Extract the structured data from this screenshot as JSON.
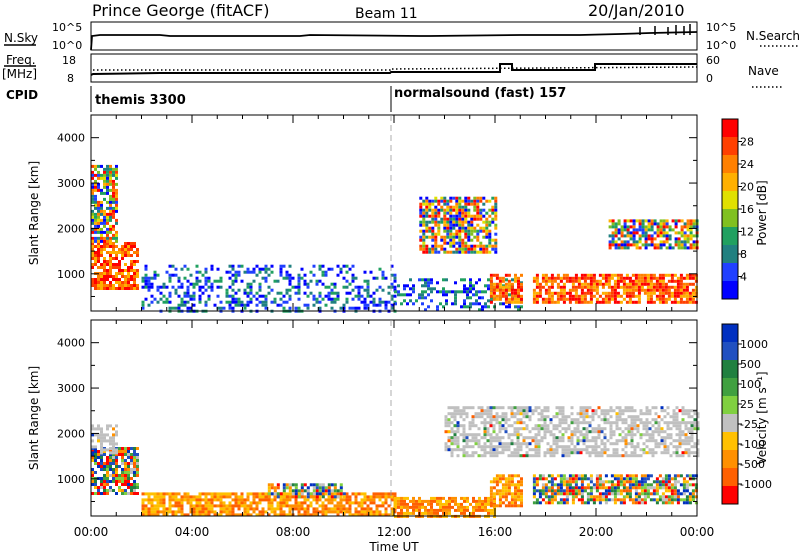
{
  "header": {
    "station": "Prince George (fitACF)",
    "beam": "Beam 11",
    "date": "20/Jan/2010"
  },
  "top_panels": {
    "nsky_label": "N.Sky",
    "nsky_ticks": [
      "10^5",
      "10^0"
    ],
    "nsearch_label": "N.Search",
    "nsearch_ticks": [
      "10^5",
      "10^0"
    ],
    "freq_label": "Freq.",
    "freq_unit": "[MHz]",
    "freq_ticks": [
      "18",
      "8"
    ],
    "nave_label": "Nave",
    "nave_ticks": [
      "60",
      "0"
    ],
    "cpid_label": "CPID",
    "cpid_segments": [
      {
        "text": "themis 3300",
        "start_hour": 0
      },
      {
        "text": "normalsound (fast) 157",
        "start_hour": 12
      }
    ]
  },
  "chart_data": [
    {
      "type": "heatmap",
      "name": "power",
      "ylabel": "Slant Range [km]",
      "yticks": [
        "4000",
        "3000",
        "2000",
        "1000"
      ],
      "ylim": [
        180,
        4500
      ],
      "xlim": [
        0,
        24
      ],
      "colorbar": {
        "label": "Power [dB]",
        "ticks": [
          "28",
          "24",
          "20",
          "16",
          "12",
          "8",
          "4"
        ],
        "colors": [
          "#ff0000",
          "#ff4000",
          "#ff8000",
          "#ffb000",
          "#e0e000",
          "#80c020",
          "#20a060",
          "#208080",
          "#2040ff",
          "#0000ff"
        ]
      },
      "echo_regions": [
        {
          "h0": 0.0,
          "h1": 1.8,
          "r0": 700,
          "r1": 1700,
          "value": "strong"
        },
        {
          "h0": 0.0,
          "h1": 1.0,
          "r0": 1700,
          "r1": 3400,
          "value": "mixed"
        },
        {
          "h0": 2.0,
          "h1": 12.0,
          "r0": 200,
          "r1": 1200,
          "value": "weak"
        },
        {
          "h0": 12.0,
          "h1": 17.0,
          "r0": 200,
          "r1": 900,
          "value": "weak"
        },
        {
          "h0": 15.8,
          "h1": 17.0,
          "r0": 400,
          "r1": 1000,
          "value": "strong"
        },
        {
          "h0": 17.5,
          "h1": 24.0,
          "r0": 350,
          "r1": 1000,
          "value": "strong"
        },
        {
          "h0": 20.5,
          "h1": 24.0,
          "r0": 1600,
          "r1": 2200,
          "value": "mixed"
        },
        {
          "h0": 13.0,
          "h1": 16.0,
          "r0": 1500,
          "r1": 2700,
          "value": "mixed"
        }
      ]
    },
    {
      "type": "heatmap",
      "name": "velocity",
      "ylabel": "Slant Range [km]",
      "yticks": [
        "4000",
        "3000",
        "2000",
        "1000"
      ],
      "ylim": [
        180,
        4500
      ],
      "xlim": [
        0,
        24
      ],
      "xlabel": "Time UT",
      "xticks": [
        "00:00",
        "04:00",
        "08:00",
        "12:00",
        "16:00",
        "20:00",
        "00:00"
      ],
      "colorbar": {
        "label": "Velocity [m s⁻¹]",
        "ticks": [
          "1000",
          "500",
          "100",
          "25",
          "-25",
          "-100",
          "-500",
          "-1000"
        ],
        "colors": [
          "#0030c0",
          "#2050c0",
          "#208040",
          "#40a040",
          "#80d040",
          "#c0c0c0",
          "#ffc000",
          "#ff9000",
          "#ff6000",
          "#ff0000"
        ]
      },
      "echo_regions": [
        {
          "h0": 0.0,
          "h1": 1.8,
          "r0": 700,
          "r1": 1700,
          "value": "mixed"
        },
        {
          "h0": 0.0,
          "h1": 1.0,
          "r0": 1600,
          "r1": 2200,
          "value": "ground"
        },
        {
          "h0": 2.0,
          "h1": 12.0,
          "r0": 200,
          "r1": 700,
          "value": "negative"
        },
        {
          "h0": 7.0,
          "h1": 10.0,
          "r0": 600,
          "r1": 900,
          "value": "mixed"
        },
        {
          "h0": 12.0,
          "h1": 16.0,
          "r0": 200,
          "r1": 600,
          "value": "negative"
        },
        {
          "h0": 15.8,
          "h1": 17.0,
          "r0": 400,
          "r1": 1100,
          "value": "negative"
        },
        {
          "h0": 17.5,
          "h1": 24.0,
          "r0": 450,
          "r1": 1100,
          "value": "mixed"
        },
        {
          "h0": 14.0,
          "h1": 24.0,
          "r0": 1500,
          "r1": 2600,
          "value": "ground"
        }
      ]
    }
  ]
}
